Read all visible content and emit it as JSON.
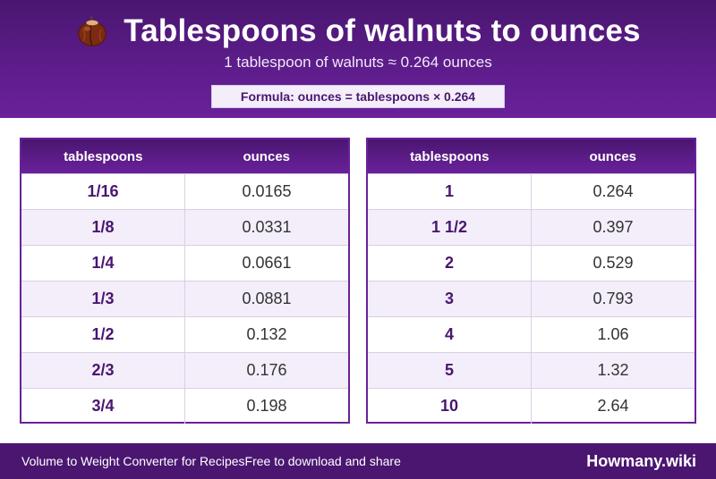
{
  "header": {
    "icon": "walnut-icon",
    "title": "Tablespoons of walnuts to ounces",
    "subtitle": "1 tablespoon of walnuts ≈ 0.264 ounces",
    "formula": "Formula: ounces = tablespoons × 0.264"
  },
  "tables": [
    {
      "col1": "tablespoons",
      "col2": "ounces",
      "rows": [
        {
          "tbsp": "1/16",
          "oz": "0.0165"
        },
        {
          "tbsp": "1/8",
          "oz": "0.0331"
        },
        {
          "tbsp": "1/4",
          "oz": "0.0661"
        },
        {
          "tbsp": "1/3",
          "oz": "0.0881"
        },
        {
          "tbsp": "1/2",
          "oz": "0.132"
        },
        {
          "tbsp": "2/3",
          "oz": "0.176"
        },
        {
          "tbsp": "3/4",
          "oz": "0.198"
        }
      ]
    },
    {
      "col1": "tablespoons",
      "col2": "ounces",
      "rows": [
        {
          "tbsp": "1",
          "oz": "0.264"
        },
        {
          "tbsp": "1 1/2",
          "oz": "0.397"
        },
        {
          "tbsp": "2",
          "oz": "0.529"
        },
        {
          "tbsp": "3",
          "oz": "0.793"
        },
        {
          "tbsp": "4",
          "oz": "1.06"
        },
        {
          "tbsp": "5",
          "oz": "1.32"
        },
        {
          "tbsp": "10",
          "oz": "2.64"
        }
      ]
    }
  ],
  "footer": {
    "left_text": "Volume to Weight Converter for Recipes",
    "tagline": "Free to download and share",
    "brand": "Howmany.wiki"
  },
  "colors": {
    "primary": "#4a1670",
    "accent": "#6a219b",
    "row_alt": "#f3eef9"
  }
}
